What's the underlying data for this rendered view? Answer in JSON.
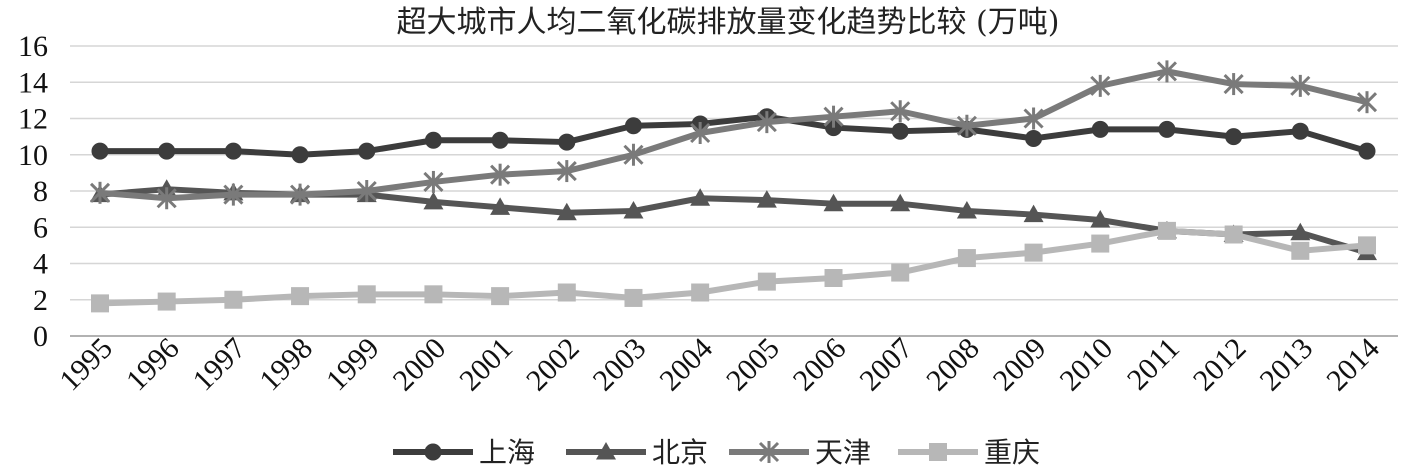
{
  "chart_data": {
    "type": "line",
    "title": "超大城市人均二氧化碳排放量变化趋势比较 (万吨)",
    "categories": [
      "1995",
      "1996",
      "1997",
      "1998",
      "1999",
      "2000",
      "2001",
      "2002",
      "2003",
      "2004",
      "2005",
      "2006",
      "2007",
      "2008",
      "2009",
      "2010",
      "2011",
      "2012",
      "2013",
      "2014"
    ],
    "ylim": [
      0,
      16
    ],
    "yticks": [
      "0",
      "2",
      "4",
      "6",
      "8",
      "10",
      "12",
      "14",
      "16"
    ],
    "grid": true,
    "legend_position": "bottom",
    "series": [
      {
        "name": "上海",
        "marker": "circle",
        "color": "#3c3c3c",
        "values": [
          10.2,
          10.2,
          10.2,
          10.0,
          10.2,
          10.8,
          10.8,
          10.7,
          11.6,
          11.7,
          12.1,
          11.5,
          11.3,
          11.4,
          10.9,
          11.4,
          11.4,
          11.0,
          11.3,
          10.2
        ]
      },
      {
        "name": "北京",
        "marker": "triangle",
        "color": "#555555",
        "values": [
          7.8,
          8.1,
          7.9,
          7.8,
          7.8,
          7.4,
          7.1,
          6.8,
          6.9,
          7.6,
          7.5,
          7.3,
          7.3,
          6.9,
          6.7,
          6.4,
          5.8,
          5.6,
          5.7,
          4.6
        ]
      },
      {
        "name": "天津",
        "marker": "star",
        "color": "#7a7a7a",
        "values": [
          7.9,
          7.6,
          7.8,
          7.8,
          8.0,
          8.5,
          8.9,
          9.1,
          10.0,
          11.2,
          11.8,
          12.1,
          12.4,
          11.6,
          12.0,
          13.8,
          14.6,
          13.9,
          13.8,
          12.9
        ]
      },
      {
        "name": "重庆",
        "marker": "square",
        "color": "#b7b7b7",
        "values": [
          1.8,
          1.9,
          2.0,
          2.2,
          2.3,
          2.3,
          2.2,
          2.4,
          2.1,
          2.4,
          3.0,
          3.2,
          3.5,
          4.3,
          4.6,
          5.1,
          5.8,
          5.6,
          4.7,
          5.0
        ]
      }
    ]
  }
}
